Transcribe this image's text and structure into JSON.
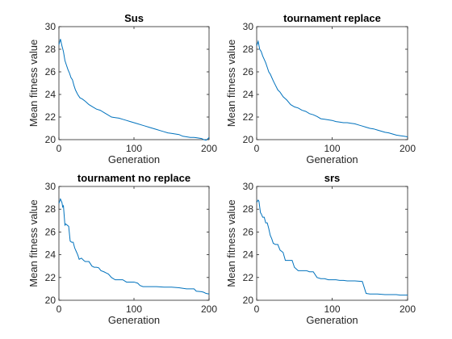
{
  "colors": {
    "line": "#0072BD",
    "axis": "#262626",
    "background": "#ffffff"
  },
  "chart_data": [
    {
      "type": "line",
      "title": "Sus",
      "xlabel": "Generation",
      "ylabel": "Mean fitness value",
      "xlim": [
        0,
        200
      ],
      "ylim": [
        20,
        30
      ],
      "xticks": [
        "0",
        "100",
        "200"
      ],
      "yticks": [
        "20",
        "22",
        "24",
        "26",
        "28",
        "30"
      ],
      "grid": false,
      "series": [
        {
          "x": [
            0,
            2,
            4,
            6,
            8,
            10,
            12,
            14,
            16,
            18,
            20,
            22,
            25,
            28,
            31,
            35,
            40,
            45,
            50,
            55,
            60,
            65,
            70,
            75,
            80,
            85,
            90,
            95,
            100,
            105,
            110,
            115,
            120,
            125,
            130,
            135,
            140,
            145,
            150,
            155,
            160,
            165,
            170,
            175,
            180,
            185,
            190,
            193,
            196,
            198,
            200
          ],
          "y": [
            28.4,
            28.9,
            28.3,
            27.8,
            27.0,
            26.6,
            26.2,
            25.9,
            25.5,
            25.3,
            24.8,
            24.4,
            24.0,
            23.7,
            23.6,
            23.4,
            23.1,
            22.9,
            22.7,
            22.6,
            22.4,
            22.2,
            22.0,
            21.95,
            21.9,
            21.8,
            21.7,
            21.6,
            21.5,
            21.4,
            21.3,
            21.2,
            21.1,
            21.0,
            20.9,
            20.8,
            20.7,
            20.6,
            20.55,
            20.5,
            20.45,
            20.3,
            20.25,
            20.2,
            20.2,
            20.15,
            20.1,
            20.0,
            19.95,
            20.05,
            20.2
          ]
        }
      ]
    },
    {
      "type": "line",
      "title": "tournament replace",
      "xlabel": "Generation",
      "ylabel": "Mean fitness value",
      "xlim": [
        0,
        200
      ],
      "ylim": [
        20,
        30
      ],
      "xticks": [
        "0",
        "100",
        "200"
      ],
      "yticks": [
        "20",
        "22",
        "24",
        "26",
        "28",
        "30"
      ],
      "grid": false,
      "series": [
        {
          "x": [
            0,
            2,
            4,
            6,
            8,
            10,
            12,
            14,
            16,
            18,
            20,
            22,
            25,
            28,
            31,
            35,
            40,
            45,
            50,
            55,
            60,
            65,
            70,
            75,
            80,
            85,
            90,
            95,
            100,
            105,
            110,
            115,
            120,
            125,
            130,
            135,
            140,
            145,
            150,
            155,
            160,
            165,
            170,
            175,
            180,
            185,
            190,
            195,
            200
          ],
          "y": [
            28.3,
            28.7,
            28.0,
            27.8,
            27.4,
            27.1,
            26.8,
            26.4,
            26.0,
            25.8,
            25.5,
            25.2,
            24.8,
            24.4,
            24.2,
            23.8,
            23.5,
            23.1,
            22.9,
            22.8,
            22.6,
            22.5,
            22.3,
            22.2,
            22.05,
            21.85,
            21.8,
            21.75,
            21.7,
            21.6,
            21.55,
            21.5,
            21.5,
            21.45,
            21.4,
            21.3,
            21.2,
            21.1,
            21.0,
            20.95,
            20.85,
            20.75,
            20.65,
            20.6,
            20.5,
            20.4,
            20.35,
            20.3,
            20.25
          ]
        }
      ]
    },
    {
      "type": "line",
      "title": "tournament no replace",
      "xlabel": "Generation",
      "ylabel": "Mean fitness value",
      "xlim": [
        0,
        200
      ],
      "ylim": [
        20,
        30
      ],
      "xticks": [
        "0",
        "100",
        "200"
      ],
      "yticks": [
        "20",
        "22",
        "24",
        "26",
        "28",
        "30"
      ],
      "grid": false,
      "series": [
        {
          "x": [
            0,
            2,
            4,
            5,
            6,
            8,
            9,
            11,
            13,
            15,
            17,
            19,
            21,
            23,
            25,
            27,
            30,
            33,
            35,
            38,
            40,
            44,
            47,
            50,
            53,
            56,
            60,
            63,
            66,
            70,
            75,
            80,
            85,
            90,
            95,
            100,
            105,
            108,
            112,
            120,
            130,
            140,
            150,
            160,
            170,
            180,
            183,
            190,
            193,
            196,
            200
          ],
          "y": [
            28.5,
            28.9,
            28.6,
            28.2,
            28.3,
            26.6,
            26.7,
            26.6,
            26.5,
            25.2,
            25.1,
            25.1,
            24.6,
            24.3,
            24.0,
            23.6,
            23.7,
            23.5,
            23.4,
            23.4,
            23.4,
            23.0,
            22.9,
            22.9,
            22.85,
            22.6,
            22.5,
            22.4,
            22.3,
            22.0,
            21.8,
            21.8,
            21.8,
            21.6,
            21.6,
            21.6,
            21.5,
            21.3,
            21.2,
            21.2,
            21.2,
            21.15,
            21.15,
            21.1,
            21.0,
            21.0,
            20.8,
            20.75,
            20.7,
            20.6,
            20.55
          ]
        }
      ]
    },
    {
      "type": "line",
      "title": "srs",
      "xlabel": "Generation",
      "ylabel": "Mean fitness value",
      "xlim": [
        0,
        200
      ],
      "ylim": [
        20,
        30
      ],
      "xticks": [
        "0",
        "100",
        "200"
      ],
      "yticks": [
        "20",
        "22",
        "24",
        "26",
        "28",
        "30"
      ],
      "grid": false,
      "series": [
        {
          "x": [
            0,
            2,
            3,
            5,
            6,
            8,
            10,
            12,
            14,
            16,
            18,
            20,
            22,
            25,
            28,
            31,
            35,
            38,
            40,
            44,
            47,
            50,
            55,
            60,
            62,
            66,
            70,
            75,
            80,
            85,
            90,
            95,
            100,
            105,
            110,
            115,
            120,
            130,
            140,
            145,
            150,
            160,
            170,
            180,
            185,
            190,
            195,
            200
          ],
          "y": [
            28.6,
            28.8,
            28.7,
            27.7,
            27.6,
            27.3,
            27.3,
            26.8,
            26.8,
            26.3,
            25.7,
            25.4,
            25.0,
            24.9,
            24.9,
            24.4,
            24.2,
            23.5,
            23.5,
            23.5,
            23.5,
            22.9,
            22.6,
            22.6,
            22.6,
            22.6,
            22.5,
            22.5,
            22.0,
            21.9,
            21.9,
            21.8,
            21.8,
            21.8,
            21.75,
            21.75,
            21.7,
            21.7,
            21.65,
            20.6,
            20.55,
            20.55,
            20.5,
            20.5,
            20.5,
            20.45,
            20.45,
            20.45
          ]
        }
      ]
    }
  ]
}
